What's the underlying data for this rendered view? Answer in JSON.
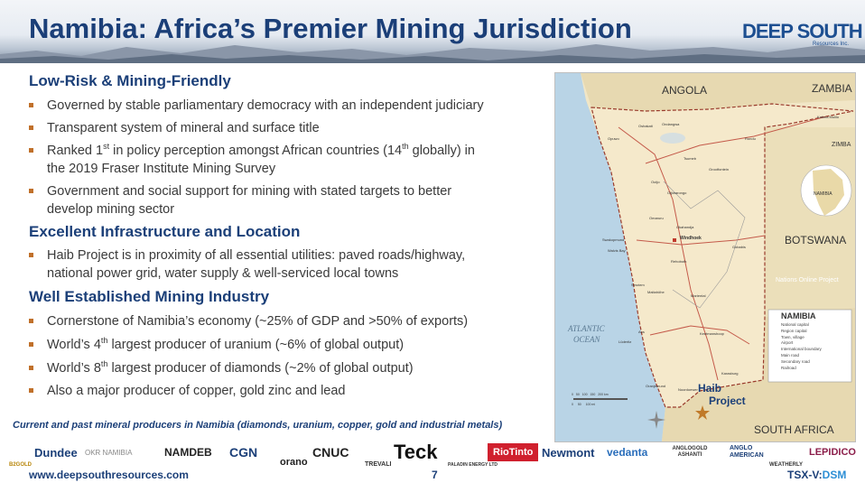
{
  "header": {
    "title": "Namibia: Africa’s Premier Mining Jurisdiction",
    "logo": "DEEP SOUTH",
    "logo_sub": "Resources Inc."
  },
  "sections": [
    {
      "heading": "Low-Risk & Mining-Friendly",
      "bullets": [
        [
          "Governed by stable parliamentary democracy with an independent judiciary"
        ],
        [
          "Transparent system of mineral and surface title"
        ],
        [
          "Ranked 1",
          "st",
          " in policy perception amongst African countries (14",
          "th",
          " globally) in",
          "the 2019 Fraser Institute Mining Survey"
        ],
        [
          "Government and social support for mining with stated targets to better",
          "develop mining sector"
        ]
      ]
    },
    {
      "heading": "Excellent Infrastructure and Location",
      "bullets": [
        [
          "Haib Project is in proximity of all essential utilities: paved roads/highway,",
          "national power grid, water supply & well-serviced local towns"
        ]
      ]
    },
    {
      "heading": "Well Established Mining Industry",
      "bullets": [
        [
          "Cornerstone of Namibia’s economy (~25% of GDP and >50% of exports)"
        ],
        [
          "World’s 4",
          "th",
          " largest producer of uranium (~6% of global output)"
        ],
        [
          "World’s 8",
          "th",
          " largest producer of diamonds (~2% of global output)"
        ],
        [
          "Also a major producer of copper, gold zinc and lead"
        ]
      ]
    }
  ],
  "map": {
    "countries": [
      "ANGOLA",
      "ZAMBIA",
      "ZIMBA",
      "BOTSWANA",
      "SOUTH AFRICA"
    ],
    "ocean": [
      "ATLANTIC",
      "OCEAN"
    ],
    "project": [
      "Haib",
      "Project"
    ],
    "inset_label": "NAMIBIA",
    "watermark": "Nations Online Project",
    "legend_title": "NAMIBIA",
    "legend_items": [
      "National capital",
      "Region capital",
      "Town, village",
      "Airport",
      "International boundary",
      "Main road",
      "Secondary road",
      "Railroad"
    ],
    "cities": [
      "Windhoek",
      "Swakopmund",
      "Walvis Bay",
      "Lüderitz",
      "Keetmanshoop",
      "Oranjemund",
      "Tsumeb",
      "Grootfontein",
      "Gobabis",
      "Rundu",
      "Katima Mulilo",
      "Opuwo",
      "Otjiwarongo",
      "Rehoboth",
      "Mariental",
      "Karasburg",
      "Noordoewer",
      "Aus",
      "Maltahöhe",
      "Sesriem",
      "Outjo",
      "Okahandja",
      "Omaruru",
      "Ondangwa",
      "Oshakati"
    ],
    "scale": [
      "0",
      "50",
      "100",
      "150",
      "200 km",
      "0",
      "50",
      "100 mi"
    ]
  },
  "caption": "Current and past mineral producers in Namibia (diamonds, uranium, copper, gold and industrial metals)",
  "producers": [
    "B2GOLD",
    "Dundee",
    "OKR NAMIBIA",
    "NAMDEB",
    "CGN",
    "orano",
    "CNUC",
    "TREVALI",
    "Teck",
    "PALADIN ENERGY LTD",
    "RioTinto",
    "Newmont",
    "vedanta",
    "ANGLOGOLD ASHANTI",
    "ANGLO AMERICAN",
    "WEATHERLY",
    "LEPIDICO"
  ],
  "footer": {
    "url": "www.deepsouthresources.com",
    "page": "7",
    "ticker_a": "TSX-V:",
    "ticker_b": "DSM"
  },
  "colors": {
    "title": "#1b3f78",
    "bullet": "#c0702a",
    "map_land": "#f1e6c6",
    "map_sea": "#b9d4e6"
  }
}
